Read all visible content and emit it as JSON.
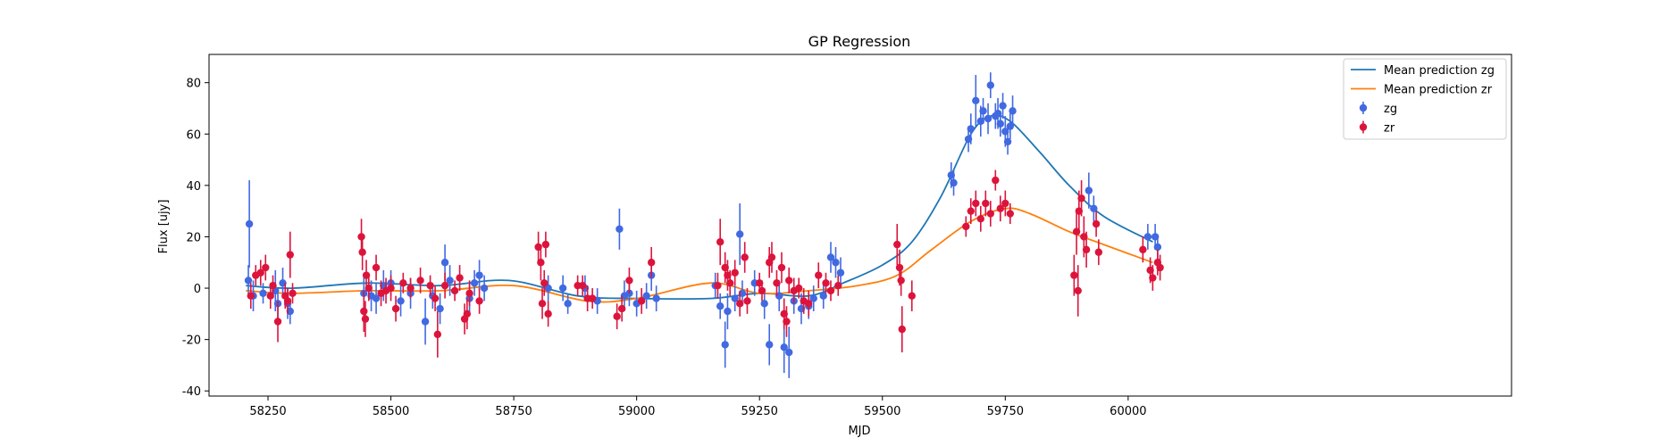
{
  "chart_data": {
    "type": "scatter",
    "title": "GP Regression",
    "xlabel": "MJD",
    "ylabel": "Flux [ujy]",
    "xlim": [
      58130,
      60780
    ],
    "ylim": [
      -42,
      91
    ],
    "xticks": [
      58250,
      58500,
      58750,
      59000,
      59250,
      59500,
      59750,
      60000
    ],
    "yticks": [
      -40,
      -20,
      0,
      20,
      40,
      60,
      80
    ],
    "legend_position": "top-right",
    "grid": false,
    "series": [
      {
        "name": "Mean prediction zg",
        "kind": "line",
        "color": "#1f77b4",
        "x": [
          58205,
          58300,
          58450,
          58600,
          58740,
          58880,
          59000,
          59150,
          59250,
          59350,
          59420,
          59500,
          59560,
          59620,
          59680,
          59720,
          59760,
          59820,
          59880,
          59950,
          60050
        ],
        "y": [
          1,
          0,
          2,
          1,
          3,
          -3,
          -4,
          -4,
          -2,
          -3,
          2,
          9,
          18,
          36,
          60,
          67,
          65,
          53,
          40,
          28,
          18
        ]
      },
      {
        "name": "Mean prediction zr",
        "kind": "line",
        "color": "#ff7f0e",
        "x": [
          58205,
          58300,
          58450,
          58600,
          58750,
          58900,
          59000,
          59150,
          59250,
          59350,
          59450,
          59530,
          59600,
          59680,
          59750,
          59800,
          59880,
          59950,
          60050
        ],
        "y": [
          -1,
          -2,
          -1,
          -1,
          1,
          -5,
          -4,
          2,
          -2,
          -1,
          1,
          5,
          15,
          26,
          31,
          29,
          22,
          17,
          10
        ]
      },
      {
        "name": "zg",
        "kind": "errorbar",
        "color": "#4169e1",
        "points": [
          [
            58210,
            3,
            6
          ],
          [
            58212,
            25,
            17
          ],
          [
            58220,
            -3,
            6
          ],
          [
            58240,
            -2,
            4
          ],
          [
            58265,
            -1,
            8
          ],
          [
            58270,
            -6,
            6
          ],
          [
            58280,
            2,
            6
          ],
          [
            58290,
            -6,
            6
          ],
          [
            58295,
            -9,
            5
          ],
          [
            58445,
            -2,
            7
          ],
          [
            58460,
            -3,
            6
          ],
          [
            58470,
            -4,
            6
          ],
          [
            58485,
            1,
            6
          ],
          [
            58500,
            2,
            5
          ],
          [
            58520,
            -5,
            6
          ],
          [
            58540,
            -2,
            6
          ],
          [
            58570,
            -13,
            9
          ],
          [
            58585,
            -3,
            5
          ],
          [
            58600,
            -8,
            6
          ],
          [
            58610,
            10,
            7
          ],
          [
            58620,
            3,
            6
          ],
          [
            58660,
            -4,
            6
          ],
          [
            58670,
            2,
            5
          ],
          [
            58680,
            5,
            6
          ],
          [
            58690,
            0,
            5
          ],
          [
            58820,
            0,
            5
          ],
          [
            58850,
            0,
            5
          ],
          [
            58860,
            -6,
            4
          ],
          [
            58895,
            0,
            5
          ],
          [
            58920,
            -5,
            5
          ],
          [
            58965,
            23,
            8
          ],
          [
            58975,
            -3,
            6
          ],
          [
            58985,
            -2,
            5
          ],
          [
            59000,
            -6,
            5
          ],
          [
            59020,
            -3,
            5
          ],
          [
            59030,
            5,
            6
          ],
          [
            59040,
            -4,
            5
          ],
          [
            59160,
            1,
            5
          ],
          [
            59170,
            -7,
            5
          ],
          [
            59180,
            -22,
            9
          ],
          [
            59185,
            -9,
            7
          ],
          [
            59200,
            -4,
            5
          ],
          [
            59210,
            21,
            12
          ],
          [
            59215,
            -2,
            5
          ],
          [
            59240,
            2,
            5
          ],
          [
            59260,
            -6,
            6
          ],
          [
            59270,
            -22,
            8
          ],
          [
            59290,
            -3,
            6
          ],
          [
            59300,
            -23,
            10
          ],
          [
            59310,
            -25,
            10
          ],
          [
            59320,
            -5,
            5
          ],
          [
            59335,
            -8,
            6
          ],
          [
            59350,
            -7,
            5
          ],
          [
            59360,
            -4,
            5
          ],
          [
            59380,
            -3,
            5
          ],
          [
            59395,
            12,
            6
          ],
          [
            59405,
            10,
            6
          ],
          [
            59415,
            6,
            6
          ],
          [
            59640,
            44,
            5
          ],
          [
            59645,
            41,
            5
          ],
          [
            59675,
            58,
            5
          ],
          [
            59680,
            62,
            6
          ],
          [
            59690,
            73,
            10
          ],
          [
            59700,
            65,
            6
          ],
          [
            59705,
            69,
            5
          ],
          [
            59715,
            66,
            6
          ],
          [
            59720,
            79,
            5
          ],
          [
            59730,
            67,
            5
          ],
          [
            59735,
            68,
            6
          ],
          [
            59740,
            64,
            5
          ],
          [
            59745,
            71,
            5
          ],
          [
            59750,
            61,
            6
          ],
          [
            59755,
            57,
            5
          ],
          [
            59760,
            63,
            5
          ],
          [
            59765,
            69,
            6
          ],
          [
            59920,
            38,
            7
          ],
          [
            59930,
            31,
            5
          ],
          [
            60040,
            20,
            5
          ],
          [
            60055,
            20,
            5
          ],
          [
            60060,
            16,
            5
          ]
        ]
      },
      {
        "name": "zr",
        "kind": "errorbar",
        "color": "#dc143c",
        "points": [
          [
            58215,
            -3,
            5
          ],
          [
            58225,
            5,
            4
          ],
          [
            58235,
            6,
            5
          ],
          [
            58245,
            8,
            5
          ],
          [
            58255,
            -3,
            5
          ],
          [
            58260,
            1,
            4
          ],
          [
            58270,
            -13,
            8
          ],
          [
            58285,
            -3,
            5
          ],
          [
            58290,
            -5,
            5
          ],
          [
            58295,
            13,
            9
          ],
          [
            58300,
            -2,
            4
          ],
          [
            58440,
            20,
            7
          ],
          [
            58442,
            14,
            7
          ],
          [
            58445,
            -9,
            8
          ],
          [
            58448,
            -12,
            7
          ],
          [
            58450,
            5,
            6
          ],
          [
            58455,
            0,
            5
          ],
          [
            58470,
            8,
            5
          ],
          [
            58480,
            -2,
            5
          ],
          [
            58490,
            -1,
            5
          ],
          [
            58500,
            0,
            5
          ],
          [
            58510,
            -8,
            5
          ],
          [
            58525,
            2,
            4
          ],
          [
            58540,
            0,
            4
          ],
          [
            58560,
            3,
            5
          ],
          [
            58580,
            1,
            4
          ],
          [
            58590,
            -4,
            5
          ],
          [
            58595,
            -18,
            9
          ],
          [
            58610,
            1,
            5
          ],
          [
            58630,
            -1,
            4
          ],
          [
            58640,
            4,
            5
          ],
          [
            58650,
            -12,
            6
          ],
          [
            58655,
            -10,
            6
          ],
          [
            58660,
            -2,
            5
          ],
          [
            58680,
            -5,
            5
          ],
          [
            58800,
            16,
            6
          ],
          [
            58805,
            10,
            7
          ],
          [
            58808,
            -6,
            6
          ],
          [
            58812,
            2,
            5
          ],
          [
            58815,
            17,
            5
          ],
          [
            58820,
            -10,
            5
          ],
          [
            58880,
            1,
            4
          ],
          [
            58890,
            1,
            4
          ],
          [
            58900,
            -4,
            5
          ],
          [
            58910,
            -4,
            4
          ],
          [
            58960,
            -11,
            5
          ],
          [
            58970,
            -8,
            5
          ],
          [
            58985,
            3,
            5
          ],
          [
            59010,
            -5,
            5
          ],
          [
            59030,
            10,
            6
          ],
          [
            59165,
            1,
            5
          ],
          [
            59170,
            18,
            9
          ],
          [
            59180,
            8,
            6
          ],
          [
            59185,
            5,
            6
          ],
          [
            59190,
            2,
            5
          ],
          [
            59200,
            6,
            5
          ],
          [
            59210,
            -6,
            5
          ],
          [
            59220,
            12,
            6
          ],
          [
            59225,
            -5,
            5
          ],
          [
            59250,
            2,
            4
          ],
          [
            59255,
            -1,
            4
          ],
          [
            59270,
            10,
            6
          ],
          [
            59275,
            12,
            6
          ],
          [
            59285,
            2,
            5
          ],
          [
            59295,
            8,
            6
          ],
          [
            59300,
            -10,
            6
          ],
          [
            59305,
            -13,
            6
          ],
          [
            59310,
            3,
            5
          ],
          [
            59320,
            -1,
            5
          ],
          [
            59330,
            0,
            4
          ],
          [
            59340,
            -5,
            5
          ],
          [
            59350,
            -6,
            5
          ],
          [
            59370,
            5,
            5
          ],
          [
            59385,
            2,
            4
          ],
          [
            59395,
            -1,
            4
          ],
          [
            59410,
            1,
            4
          ],
          [
            59530,
            17,
            8
          ],
          [
            59535,
            8,
            7
          ],
          [
            59538,
            3,
            6
          ],
          [
            59540,
            -16,
            9
          ],
          [
            59560,
            -3,
            6
          ],
          [
            59670,
            24,
            4
          ],
          [
            59680,
            30,
            5
          ],
          [
            59690,
            33,
            5
          ],
          [
            59700,
            27,
            5
          ],
          [
            59710,
            33,
            5
          ],
          [
            59720,
            29,
            5
          ],
          [
            59730,
            42,
            4
          ],
          [
            59740,
            31,
            5
          ],
          [
            59750,
            33,
            5
          ],
          [
            59760,
            29,
            4
          ],
          [
            59890,
            5,
            8
          ],
          [
            59895,
            22,
            9
          ],
          [
            59898,
            -1,
            10
          ],
          [
            59900,
            30,
            8
          ],
          [
            59905,
            35,
            7
          ],
          [
            59910,
            20,
            8
          ],
          [
            59915,
            15,
            7
          ],
          [
            59935,
            25,
            5
          ],
          [
            59940,
            14,
            5
          ],
          [
            60030,
            15,
            5
          ],
          [
            60045,
            7,
            5
          ],
          [
            60050,
            4,
            5
          ],
          [
            60060,
            10,
            5
          ],
          [
            60065,
            8,
            5
          ]
        ]
      }
    ]
  }
}
